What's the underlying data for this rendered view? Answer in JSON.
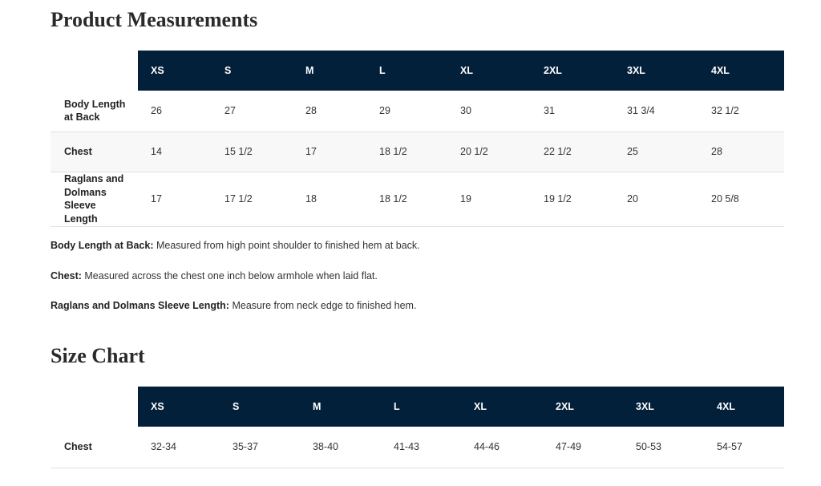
{
  "product_measurements": {
    "title": "Product Measurements",
    "columns": [
      "XS",
      "S",
      "M",
      "L",
      "XL",
      "2XL",
      "3XL",
      "4XL"
    ],
    "rows": [
      {
        "label": "Body Length at Back",
        "values": [
          26,
          27,
          28,
          29,
          30,
          31,
          "31 3/4",
          "32 1/2"
        ]
      },
      {
        "label": "Chest",
        "values": [
          14,
          "15 1/2",
          17,
          "18 1/2",
          "20 1/2",
          "22 1/2",
          25,
          28
        ]
      },
      {
        "label": "Raglans and Dolmans Sleeve Length",
        "values": [
          17,
          "17 1/2",
          18,
          "18 1/2",
          19,
          "19 1/2",
          20,
          "20 5/8"
        ]
      }
    ],
    "notes": [
      {
        "term": "Body Length at Back:",
        "text": "Measured from high point shoulder to finished hem at back."
      },
      {
        "term": "Chest:",
        "text": "Measured across the chest one inch below armhole when laid flat."
      },
      {
        "term": "Raglans and Dolmans Sleeve Length:",
        "text": "Measure from neck edge to finished hem."
      }
    ]
  },
  "size_chart": {
    "title": "Size Chart",
    "columns": [
      "XS",
      "S",
      "M",
      "L",
      "XL",
      "2XL",
      "3XL",
      "4XL"
    ],
    "rows": [
      {
        "label": "Chest",
        "values": [
          "32-34",
          "35-37",
          "38-40",
          "41-43",
          "44-46",
          "47-49",
          "50-53",
          "54-57"
        ]
      }
    ]
  }
}
